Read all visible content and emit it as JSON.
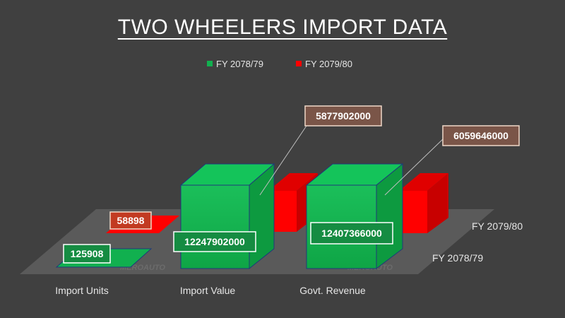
{
  "chart_data": {
    "type": "bar",
    "title": "TWO WHEELERS IMPORT DATA",
    "categories": [
      "Import Units",
      "Import Value",
      "Govt. Revenue"
    ],
    "depth_labels": [
      "FY 2078/79",
      "FY 2079/80"
    ],
    "series": [
      {
        "name": "FY 2078/79",
        "color": "#11b04f",
        "values": [
          125908,
          12247902000,
          12407366000
        ]
      },
      {
        "name": "FY 2079/80",
        "color": "#ff0000",
        "values": [
          58898,
          5877902000,
          6059646000
        ]
      }
    ],
    "data_labels": [
      [
        "125908",
        "12247902000",
        "12407366000"
      ],
      [
        "58898",
        "5877902000",
        "6059646000"
      ]
    ],
    "legend_position": "top",
    "grid": false,
    "watermark": "MEROAUTO"
  }
}
